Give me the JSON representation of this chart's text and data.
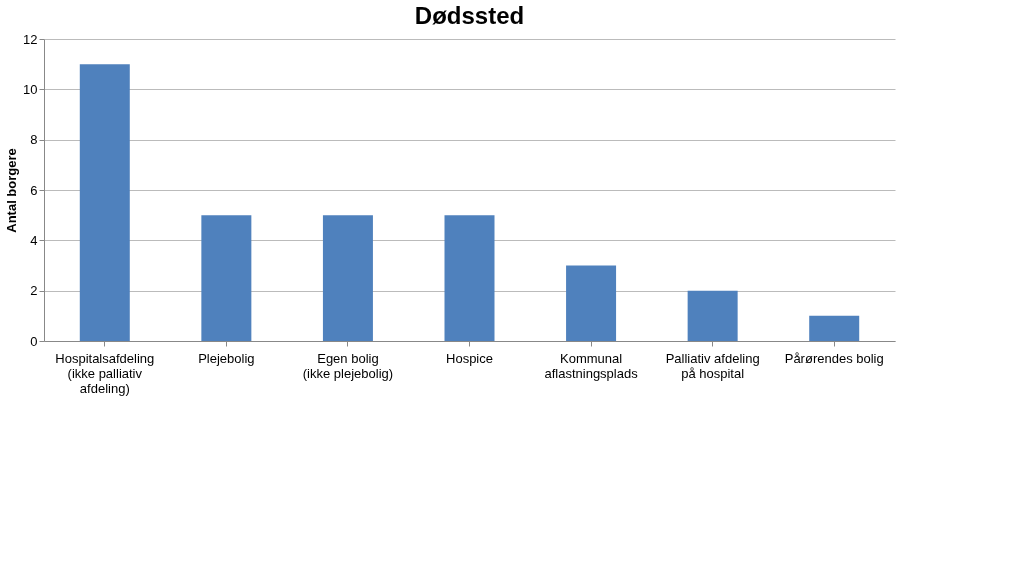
{
  "chart_data": {
    "type": "bar",
    "title": "Dødssted",
    "ylabel": "Antal borgere",
    "categories": [
      "Hospitalsafdeling (ikke palliativ afdeling)",
      "Plejebolig",
      "Egen bolig (ikke plejebolig)",
      "Hospice",
      "Kommunal aflastningsplads",
      "Palliativ afdeling på hospital",
      "Pårørendes bolig"
    ],
    "values": [
      11,
      5,
      5,
      5,
      3,
      2,
      1
    ],
    "color": "#4f81bd",
    "ylim": [
      0,
      12
    ],
    "yticks": [
      0,
      2,
      4,
      6,
      8,
      10,
      12
    ],
    "grid": "y"
  }
}
